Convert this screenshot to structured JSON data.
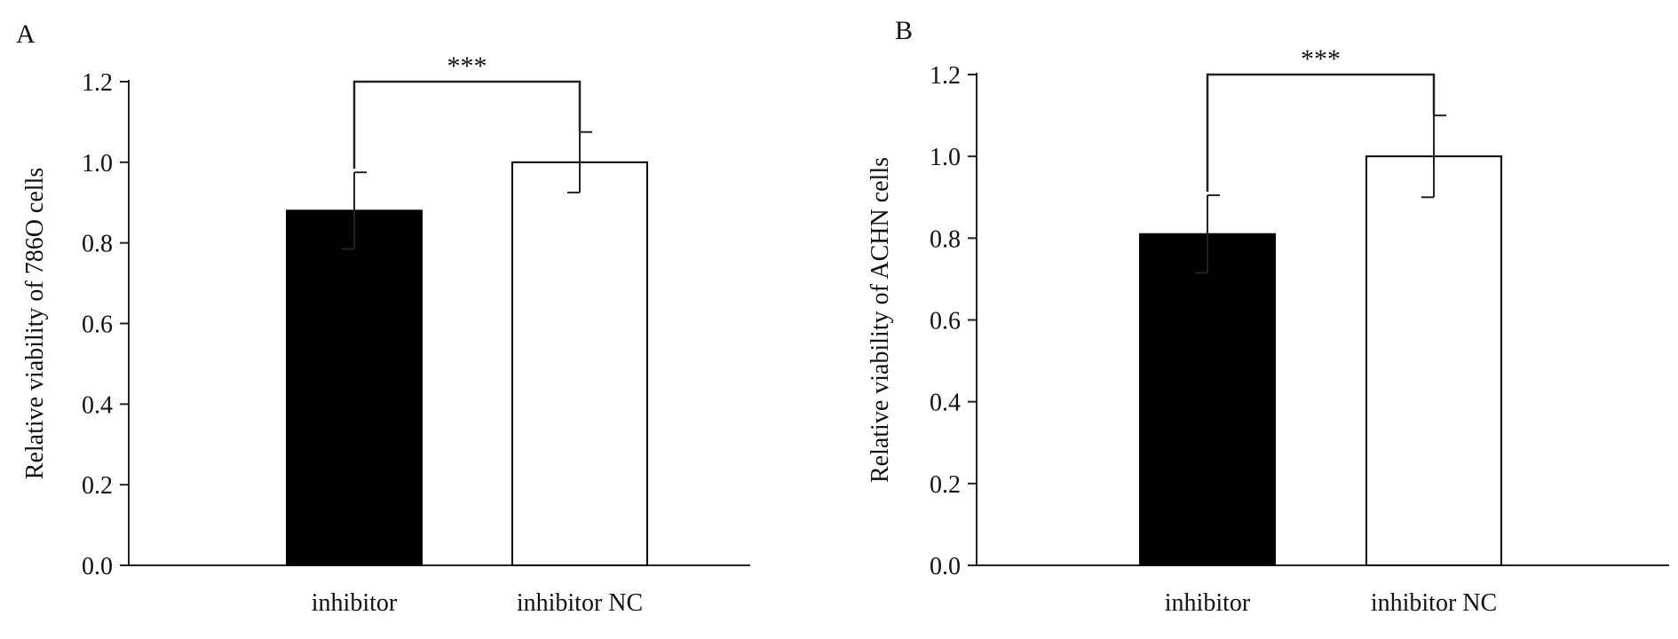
{
  "panels": [
    {
      "panel_label": "A",
      "chart_data": {
        "type": "bar",
        "categories": [
          "inhibitor",
          "inhibitor NC"
        ],
        "values": [
          0.88,
          1.0
        ],
        "errors": [
          0.095,
          0.075
        ],
        "colors": [
          "#000000",
          "#ffffff"
        ],
        "title": "",
        "xlabel": "",
        "ylabel": "Relative viability of 786O cells",
        "ylim": [
          0,
          1.2
        ],
        "yticks": [
          "0.0",
          "0.2",
          "0.4",
          "0.6",
          "0.8",
          "1.0",
          "1.2"
        ],
        "significance": {
          "between": [
            0,
            1
          ],
          "label": "***",
          "level": 1.18
        },
        "grid": false,
        "legend": "none"
      }
    },
    {
      "panel_label": "B",
      "chart_data": {
        "type": "bar",
        "categories": [
          "inhibitor",
          "inhibitor NC"
        ],
        "values": [
          0.81,
          1.0
        ],
        "errors": [
          0.095,
          0.1
        ],
        "colors": [
          "#000000",
          "#ffffff"
        ],
        "title": "",
        "xlabel": "",
        "ylabel": "Relative viability of ACHN cells",
        "ylim": [
          0,
          1.2
        ],
        "yticks": [
          "0.0",
          "0.2",
          "0.4",
          "0.6",
          "0.8",
          "1.0",
          "1.2"
        ],
        "significance": {
          "between": [
            0,
            1
          ],
          "label": "***",
          "level": 1.2
        },
        "grid": false,
        "legend": "none"
      }
    }
  ]
}
